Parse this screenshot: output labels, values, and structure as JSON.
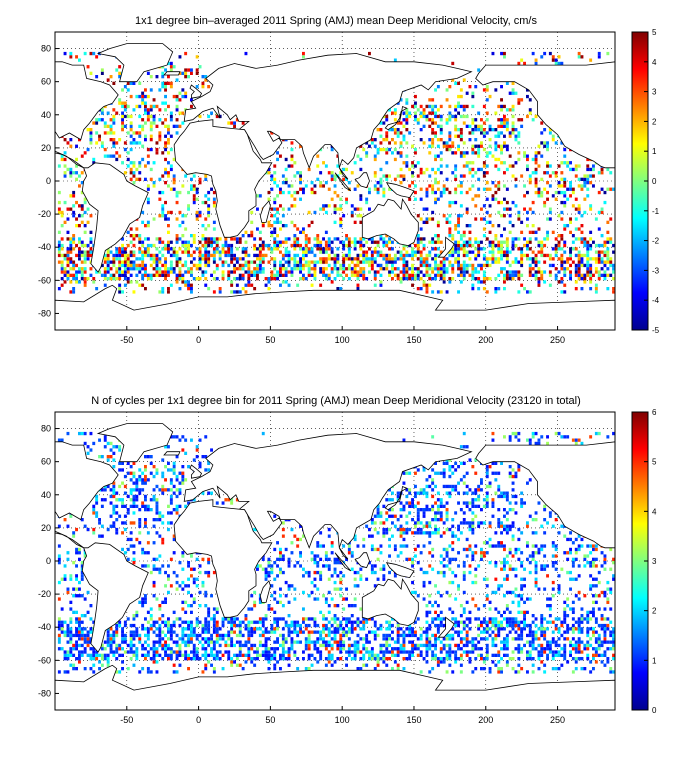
{
  "chart_data": [
    {
      "type": "heatmap",
      "title": "1x1 degree bin–averaged 2011 Spring (AMJ) mean Deep Meridional Velocity, cm/s",
      "xlim": [
        -100,
        290
      ],
      "ylim": [
        -90,
        90
      ],
      "x_ticks": [
        -50,
        0,
        50,
        100,
        150,
        200,
        250
      ],
      "y_ticks": [
        80,
        60,
        40,
        20,
        0,
        -20,
        -40,
        -60,
        -80
      ],
      "grid": true,
      "grid_style": "dotted",
      "colorbar": {
        "position": "right",
        "min": -5,
        "max": 5,
        "ticks": [
          5,
          4,
          3,
          2,
          1,
          0,
          -1,
          -2,
          -3,
          -4,
          -5
        ],
        "colormap": "jet"
      },
      "bins_note_shown": false
    },
    {
      "type": "heatmap",
      "title": "N of cycles per 1x1 degree bin for 2011 Spring (AMJ) mean Deep Meridional Velocity (23120 in total)",
      "xlim": [
        -100,
        290
      ],
      "ylim": [
        -90,
        90
      ],
      "x_ticks": [
        -50,
        0,
        50,
        100,
        150,
        200,
        250
      ],
      "y_ticks": [
        80,
        60,
        40,
        20,
        0,
        -20,
        -40,
        -60,
        -80
      ],
      "grid": true,
      "grid_style": "dotted",
      "colorbar": {
        "position": "right",
        "min": 0,
        "max": 6,
        "ticks": [
          6,
          5,
          4,
          3,
          2,
          1,
          0
        ],
        "colormap": "jet"
      }
    }
  ],
  "colors": {
    "background": "#ffffff",
    "axes": "#000000",
    "coast": "#000000"
  }
}
